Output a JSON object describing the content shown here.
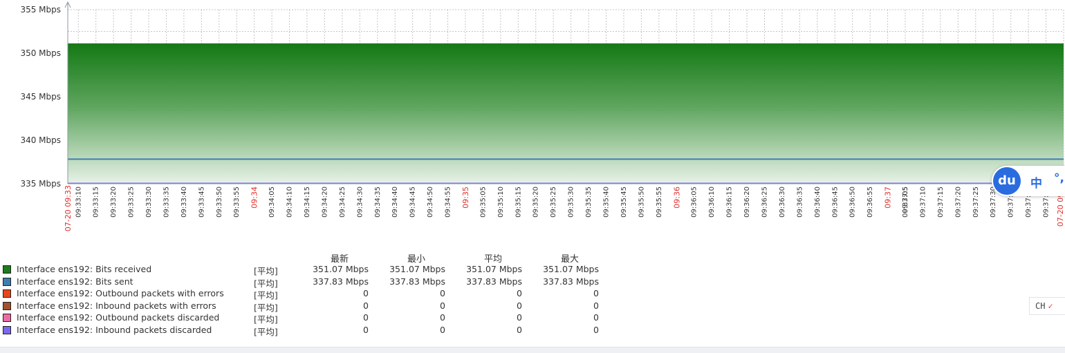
{
  "chart_data": {
    "type": "area",
    "y_ticks": [
      "355 Mbps",
      "350 Mbps",
      "345 Mbps",
      "340 Mbps",
      "335 Mbps"
    ],
    "ylim": [
      335,
      355
    ],
    "unit": "Mbps",
    "x_start_label": "07-20 09:33",
    "x_end_label": "07-20 09:3",
    "x_minute_labels": [
      "09:34",
      "09:35",
      "09:36",
      "09:37"
    ],
    "x_tick_labels": [
      "09:33:10",
      "09:33:15",
      "09:33:20",
      "09:33:25",
      "09:33:30",
      "09:33:35",
      "09:33:40",
      "09:33:45",
      "09:33:50",
      "09:33:55",
      "09:34:05",
      "09:34:10",
      "09:34:15",
      "09:34:20",
      "09:34:25",
      "09:34:30",
      "09:34:35",
      "09:34:40",
      "09:34:45",
      "09:34:50",
      "09:34:55",
      "09:35:05",
      "09:35:10",
      "09:35:15",
      "09:35:20",
      "09:35:25",
      "09:35:30",
      "09:35:35",
      "09:35:40",
      "09:35:45",
      "09:35:50",
      "09:35:55",
      "09:36:05",
      "09:36:10",
      "09:36:15",
      "09:36:20",
      "09:36:25",
      "09:36:30",
      "09:36:35",
      "09:36:40",
      "09:36:45",
      "09:36:50",
      "09:36:55",
      "09:37:05",
      "09:37:10",
      "09:37:15",
      "09:37:20",
      "09:37:25",
      "09:37:30",
      "09:37:35",
      "09:37:40",
      "09:37:45",
      "09:37:5"
    ],
    "series": [
      {
        "name": "Interface ens192: Bits received",
        "color": "#1a7a1a",
        "draw": "gradient-area",
        "value": 351.07
      },
      {
        "name": "Interface ens192: Bits sent",
        "color": "#3c7fad",
        "draw": "line",
        "value": 337.83
      },
      {
        "name": "Interface ens192: Inbound packets discarded",
        "color": "#7b68ee",
        "draw": "line",
        "value": 0
      }
    ],
    "grid": true
  },
  "legend": {
    "headers": {
      "last": "最新",
      "min": "最小",
      "avg": "平均",
      "max": "最大"
    },
    "rows": [
      {
        "name": "Interface ens192: Bits received",
        "color": "#1e7a1e",
        "func": "[平均]",
        "last": "351.07 Mbps",
        "min": "351.07 Mbps",
        "avg": "351.07 Mbps",
        "max": "351.07 Mbps"
      },
      {
        "name": "Interface ens192: Bits sent",
        "color": "#3c7fad",
        "func": "[平均]",
        "last": "337.83 Mbps",
        "min": "337.83 Mbps",
        "avg": "337.83 Mbps",
        "max": "337.83 Mbps"
      },
      {
        "name": "Interface ens192: Outbound packets with errors",
        "color": "#e8451e",
        "func": "[平均]",
        "last": "0",
        "min": "0",
        "avg": "0",
        "max": "0"
      },
      {
        "name": "Interface ens192: Inbound packets with errors",
        "color": "#a0522d",
        "func": "[平均]",
        "last": "0",
        "min": "0",
        "avg": "0",
        "max": "0"
      },
      {
        "name": "Interface ens192: Outbound packets discarded",
        "color": "#ee6aa7",
        "func": "[平均]",
        "last": "0",
        "min": "0",
        "avg": "0",
        "max": "0"
      },
      {
        "name": "Interface ens192: Inbound packets discarded",
        "color": "#7b68ee",
        "func": "[平均]",
        "last": "0",
        "min": "0",
        "avg": "0",
        "max": "0"
      }
    ]
  },
  "ime": {
    "logo": "du",
    "mode": "中",
    "punct": "°,"
  },
  "lang_indicator": {
    "label": "CH",
    "check": "✓"
  }
}
